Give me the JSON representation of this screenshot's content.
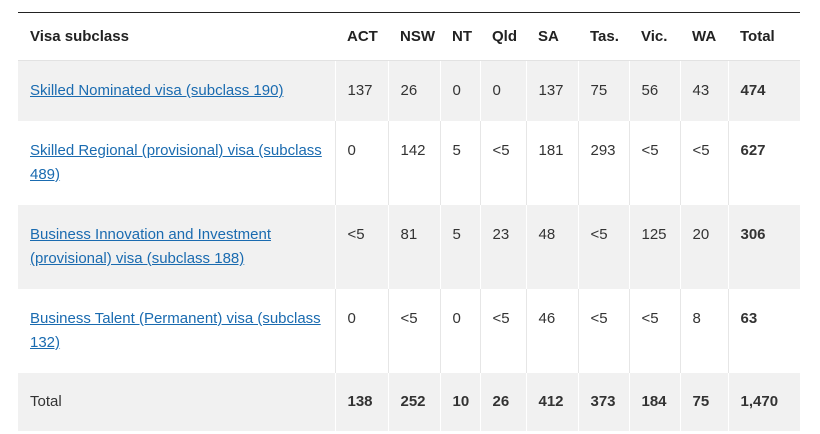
{
  "table": {
    "headers": [
      "Visa subclass",
      "ACT",
      "NSW",
      "NT",
      "Qld",
      "SA",
      "Tas.",
      "Vic.",
      "WA",
      "Total"
    ],
    "rows": [
      {
        "visa": "Skilled Nominated visa (subclass 190)",
        "values": [
          "137",
          "26",
          "0",
          "0",
          "137",
          "75",
          "56",
          "43"
        ],
        "total": "474"
      },
      {
        "visa": "Skilled Regional (provisional) visa (subclass 489)",
        "values": [
          "0",
          "142",
          "5",
          "<5",
          "181",
          "293",
          "<5",
          "<5"
        ],
        "total": "627"
      },
      {
        "visa": "Business Innovation and Investment (provisional) visa (subclass 188)",
        "values": [
          "<5",
          "81",
          "5",
          "23",
          "48",
          "<5",
          "125",
          "20"
        ],
        "total": "306"
      },
      {
        "visa": "Business Talent (Permanent) visa (subclass 132)",
        "values": [
          "0",
          "<5",
          "0",
          "<5",
          "46",
          "<5",
          "<5",
          "8"
        ],
        "total": "63"
      }
    ],
    "total_row": {
      "label": "Total",
      "values": [
        "138",
        "252",
        "10",
        "26",
        "412",
        "373",
        "184",
        "75"
      ],
      "total": "1,470"
    }
  },
  "colors": {
    "link": "#1a6bb0",
    "row_shade": "#f1f1f1",
    "rule": "#222222"
  }
}
